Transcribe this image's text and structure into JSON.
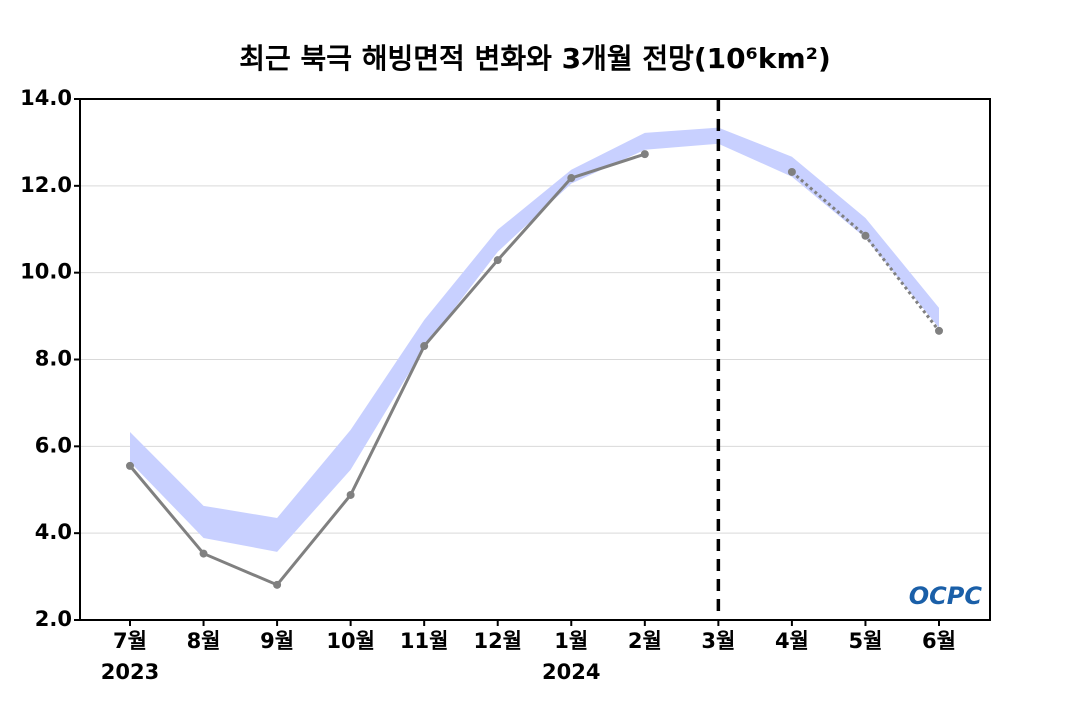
{
  "chart_data": {
    "type": "line",
    "title": "최근 북극 해빙면적 변화와 3개월 전망(10⁶km²)",
    "categories": [
      "7월",
      "8월",
      "9월",
      "10월",
      "11월",
      "12월",
      "1월",
      "2월",
      "3월",
      "4월",
      "5월",
      "6월"
    ],
    "years": [
      "2023",
      null,
      null,
      null,
      null,
      null,
      "2024",
      null,
      null,
      null,
      null,
      null
    ],
    "band": {
      "color": "#c8d0ff",
      "low": [
        5.64,
        3.89,
        3.57,
        5.46,
        8.27,
        10.48,
        12.05,
        12.83,
        12.97,
        12.21,
        10.8,
        8.73
      ],
      "high": [
        6.33,
        4.63,
        4.35,
        6.38,
        8.91,
        10.99,
        12.37,
        13.22,
        13.34,
        12.67,
        11.26,
        9.19
      ]
    },
    "series": [
      {
        "color": "#808080",
        "style": "solid",
        "values": [
          5.55,
          3.53,
          2.81,
          4.88,
          8.31,
          10.29,
          12.18,
          12.73,
          null,
          null,
          null,
          null
        ]
      },
      {
        "color": "#808080",
        "style": "dotted",
        "values": [
          null,
          null,
          null,
          null,
          null,
          null,
          null,
          null,
          null,
          12.32,
          10.85,
          8.66
        ]
      }
    ],
    "forecast_start": "3월",
    "ylim": [
      2,
      14
    ],
    "yticks": [
      {
        "value": 2,
        "label": "2.0"
      },
      {
        "value": 4,
        "label": "4.0"
      },
      {
        "value": 6,
        "label": "6.0"
      },
      {
        "value": 8,
        "label": "8.0"
      },
      {
        "value": 10,
        "label": "10.0"
      },
      {
        "value": 12,
        "label": "12.0"
      },
      {
        "value": 14,
        "label": "14.0"
      }
    ],
    "grid": true,
    "logo": "OCPC"
  }
}
